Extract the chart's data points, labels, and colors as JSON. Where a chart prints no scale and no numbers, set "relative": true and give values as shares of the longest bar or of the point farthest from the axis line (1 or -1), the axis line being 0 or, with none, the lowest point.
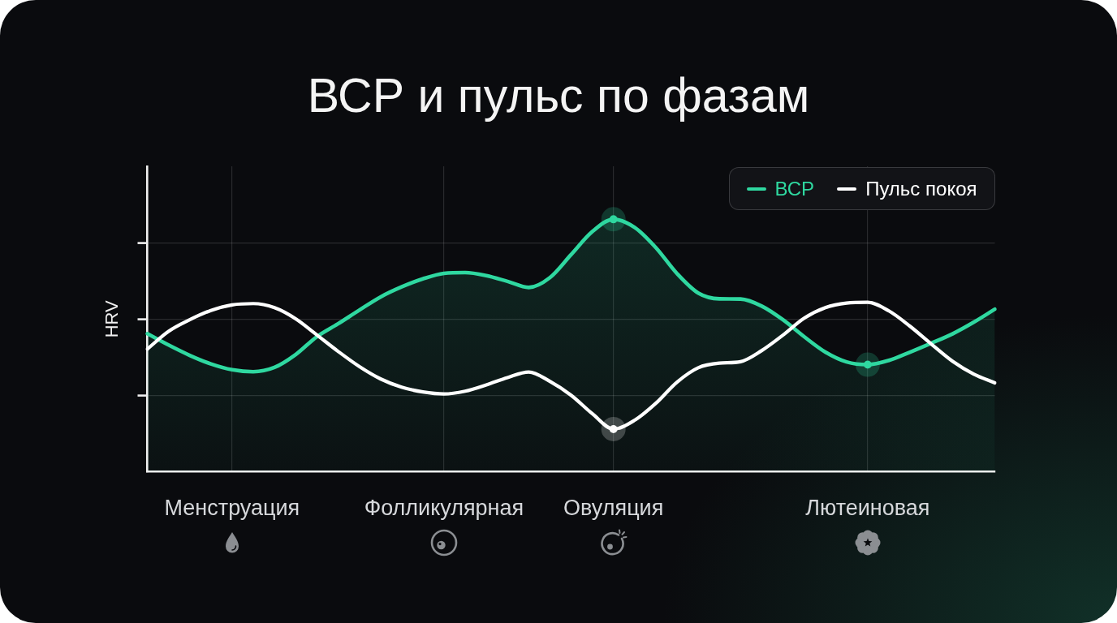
{
  "chart_data": {
    "type": "line",
    "title": "ВСР и пульс по фазам",
    "ylabel": "HRV",
    "relative": true,
    "grid": true,
    "legend": "top right",
    "tick_labels": "x",
    "categories": [
      null,
      null,
      null,
      null,
      "Менструация",
      null,
      null,
      null,
      null,
      null,
      null,
      null,
      null,
      null,
      "Фолликулярная",
      null,
      null,
      null,
      null,
      null,
      null,
      null,
      "Овуляция",
      null,
      null,
      null,
      null,
      null,
      null,
      null,
      null,
      null,
      null,
      null,
      "Лютеиновая",
      null,
      null,
      null,
      null,
      null,
      null
    ],
    "series": [
      {
        "name": "ВСР",
        "type": "area",
        "color": "#2fd8a0",
        "values": [
          0.547,
          0.502,
          0.461,
          0.427,
          0.404,
          0.396,
          0.413,
          0.464,
          0.535,
          0.586,
          0.64,
          0.692,
          0.732,
          0.764,
          0.786,
          0.789,
          0.777,
          0.754,
          0.73,
          0.769,
          0.86,
          0.951,
          1,
          0.968,
          0.888,
          0.785,
          0.708,
          0.685,
          0.684,
          0.656,
          0.602,
          0.535,
          0.474,
          0.435,
          0.424,
          0.441,
          0.474,
          0.509,
          0.546,
          0.592,
          0.644
        ]
      },
      {
        "name": "Пульс покоя",
        "type": "line",
        "color": "#ffffff",
        "values": [
          0.486,
          0.556,
          0.602,
          0.639,
          0.661,
          0.666,
          0.65,
          0.606,
          0.542,
          0.477,
          0.417,
          0.368,
          0.335,
          0.316,
          0.308,
          0.319,
          0.344,
          0.373,
          0.395,
          0.358,
          0.303,
          0.23,
          0.169,
          0.204,
          0.271,
          0.355,
          0.412,
          0.43,
          0.436,
          0.48,
          0.541,
          0.608,
          0.65,
          0.668,
          0.671,
          0.637,
          0.576,
          0.506,
          0.438,
          0.387,
          0.352
        ]
      },
      {
        "type": "scatter",
        "color": "#2fd8a0",
        "values": [
          null,
          null,
          null,
          null,
          null,
          null,
          null,
          null,
          null,
          null,
          null,
          null,
          null,
          null,
          null,
          null,
          null,
          null,
          null,
          null,
          null,
          null,
          1,
          null,
          null,
          null,
          null,
          null,
          null,
          null,
          null,
          null,
          null,
          null,
          0.424,
          null,
          null,
          null,
          null,
          null,
          null
        ]
      },
      {
        "type": "scatter",
        "color": "#ffffff",
        "values": [
          null,
          null,
          null,
          null,
          null,
          null,
          null,
          null,
          null,
          null,
          null,
          null,
          null,
          null,
          null,
          null,
          null,
          null,
          null,
          null,
          null,
          null,
          0.169,
          null,
          null,
          null,
          null,
          null,
          null,
          null,
          null,
          null,
          null,
          null,
          null,
          null,
          null,
          null,
          null,
          null,
          null
        ]
      }
    ]
  }
}
